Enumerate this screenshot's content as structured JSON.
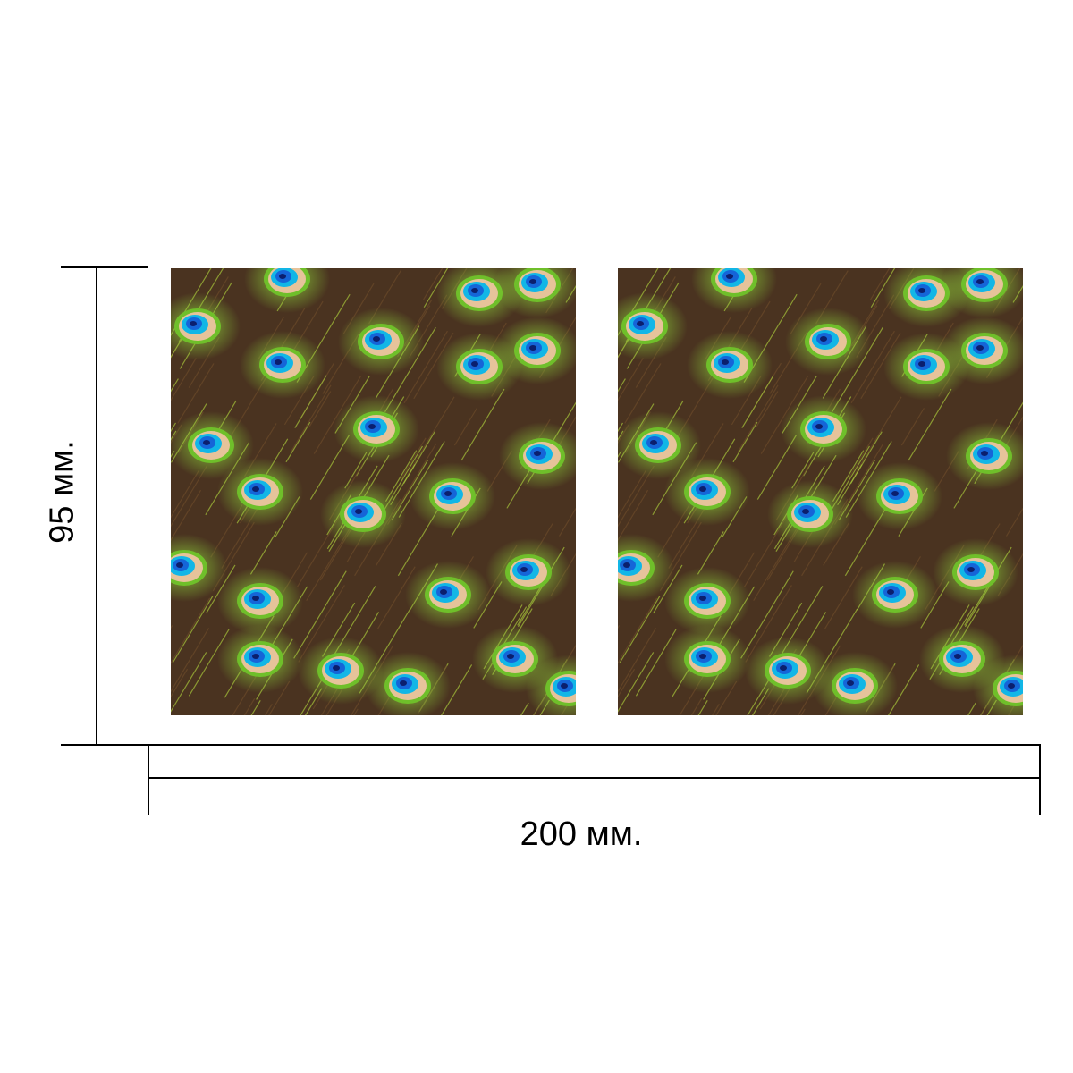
{
  "dimensions": {
    "width_label": "200 мм.",
    "height_label": "95 мм."
  },
  "panels": [
    {
      "name": "left-panel",
      "pattern": "peacock-feathers"
    },
    {
      "name": "right-panel",
      "pattern": "peacock-feathers"
    }
  ],
  "colors": {
    "feather_green": "#8fd13a",
    "eye_blue": "#1565d8",
    "eye_cyan": "#12b6e6",
    "eye_tan": "#e6c39a",
    "barb_brown": "#4a3320"
  }
}
